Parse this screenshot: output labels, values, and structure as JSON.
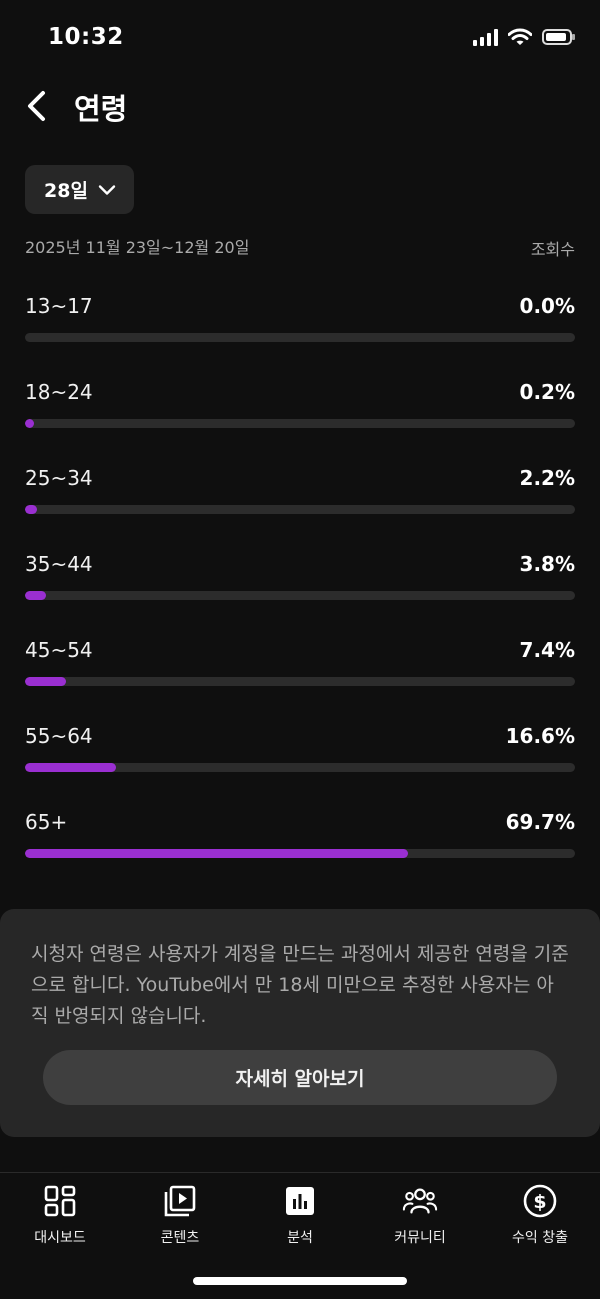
{
  "status_bar": {
    "time": "10:32"
  },
  "header": {
    "title": "연령"
  },
  "filter": {
    "period_label": "28일",
    "date_range": "2025년 11월 23일~12월 20일",
    "metric_label": "조회수"
  },
  "age_groups": [
    {
      "label": "13~17",
      "value": "0.0%",
      "percent": 0.0
    },
    {
      "label": "18~24",
      "value": "0.2%",
      "percent": 0.2
    },
    {
      "label": "25~34",
      "value": "2.2%",
      "percent": 2.2
    },
    {
      "label": "35~44",
      "value": "3.8%",
      "percent": 3.8
    },
    {
      "label": "45~54",
      "value": "7.4%",
      "percent": 7.4
    },
    {
      "label": "55~64",
      "value": "16.6%",
      "percent": 16.6
    },
    {
      "label": "65+",
      "value": "69.7%",
      "percent": 69.7
    }
  ],
  "info_card": {
    "text": "시청자 연령은 사용자가 계정을 만드는 과정에서 제공한 연령을 기준으로 합니다. YouTube에서 만 18세 미만으로 추정한 사용자는 아직 반영되지 않습니다.",
    "button_label": "자세히 알아보기"
  },
  "bottom_nav": {
    "items": [
      {
        "label": "대시보드",
        "icon": "dashboard-icon"
      },
      {
        "label": "콘텐츠",
        "icon": "content-icon"
      },
      {
        "label": "분석",
        "icon": "analytics-icon",
        "active": true
      },
      {
        "label": "커뮤니티",
        "icon": "community-icon"
      },
      {
        "label": "수익 창출",
        "icon": "monetization-icon"
      }
    ]
  },
  "colors": {
    "background": "#0f0f0f",
    "bar_fill": "#9a2fd1",
    "bar_track": "#2c2c2c",
    "card": "#272727",
    "secondary_text": "#aaaaaa"
  }
}
